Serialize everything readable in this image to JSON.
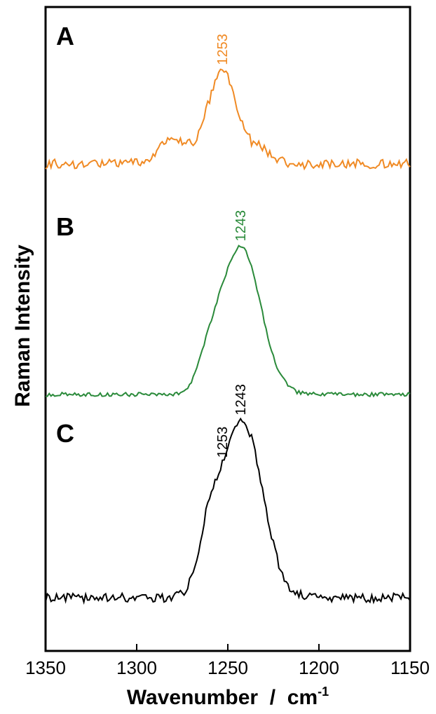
{
  "chart_data": {
    "type": "line",
    "title": "",
    "xlabel": "Wavenumber  /  cm",
    "xlabel_superscript": "-1",
    "ylabel": "Raman Intensity",
    "xlim": [
      1350,
      1150
    ],
    "x_reversed": true,
    "x_ticks": [
      1350,
      1300,
      1250,
      1200,
      1150
    ],
    "x_tick_labels": [
      "1350",
      "1300",
      "1250",
      "1200",
      "1150"
    ],
    "y_ticks_shown": false,
    "grid": false,
    "legend": "none",
    "series": [
      {
        "panel": "A",
        "color": "#F08A24",
        "baseline": 0.2,
        "peaks": [
          {
            "center": 1253,
            "height": 0.95,
            "width": 8
          },
          {
            "center": 1280,
            "height": 0.25,
            "width": 8
          },
          {
            "center": 1232,
            "height": 0.15,
            "width": 6
          }
        ],
        "noise": 0.1,
        "annotations": [
          {
            "x": 1253,
            "text": "1253"
          }
        ]
      },
      {
        "panel": "B",
        "color": "#2A8A3A",
        "baseline": 0.05,
        "peaks": [
          {
            "center": 1243,
            "height": 1.5,
            "width": 11
          },
          {
            "center": 1260,
            "height": 0.25,
            "width": 6
          }
        ],
        "noise": 0.04,
        "annotations": [
          {
            "x": 1243,
            "text": "1243"
          }
        ]
      },
      {
        "panel": "C",
        "color": "#000000",
        "baseline": 0.05,
        "peaks": [
          {
            "center": 1242,
            "height": 1.8,
            "width": 11
          },
          {
            "center": 1260,
            "height": 0.55,
            "width": 6
          }
        ],
        "noise": 0.09,
        "annotations": [
          {
            "x": 1253,
            "text": "1253"
          },
          {
            "x": 1243,
            "text": "1243"
          }
        ]
      }
    ]
  }
}
